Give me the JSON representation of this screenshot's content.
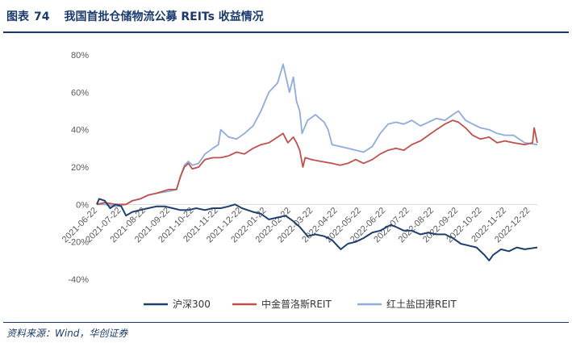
{
  "figure": {
    "label": "图表",
    "number": "74",
    "title": "我国首批仓储物流公募 REITs 收益情况",
    "source": "资料来源：Wind，华创证券"
  },
  "chart_data": {
    "type": "line",
    "yticks": [
      "80%",
      "60%",
      "40%",
      "20%",
      "0%",
      "-20%",
      "-40%"
    ],
    "ylim": [
      -40,
      80
    ],
    "xticks": [
      "2021-06-22",
      "2021-07-22",
      "2021-08-22",
      "2021-09-22",
      "2021-10-22",
      "2021-11-22",
      "2021-12-22",
      "2022-01-22",
      "2022-02-22",
      "2022-03-22",
      "2022-04-22",
      "2022-05-22",
      "2022-06-22",
      "2022-07-22",
      "2022-08-22",
      "2022-09-22",
      "2022-10-22",
      "2022-11-22",
      "2022-12-22"
    ],
    "xrange": [
      "2021-06-21",
      "2022-12-31"
    ],
    "series": [
      {
        "name": "沪深300",
        "color": "#1f3f6e",
        "points": [
          [
            "2021-06-21",
            0
          ],
          [
            "2021-06-24",
            3
          ],
          [
            "2021-07-01",
            2
          ],
          [
            "2021-07-08",
            -2
          ],
          [
            "2021-07-15",
            0
          ],
          [
            "2021-07-22",
            -1
          ],
          [
            "2021-07-28",
            -6
          ],
          [
            "2021-08-05",
            -4
          ],
          [
            "2021-08-15",
            -3
          ],
          [
            "2021-08-25",
            -2
          ],
          [
            "2021-09-05",
            -1
          ],
          [
            "2021-09-15",
            -1
          ],
          [
            "2021-09-25",
            -2
          ],
          [
            "2021-10-05",
            -3
          ],
          [
            "2021-10-15",
            -3
          ],
          [
            "2021-10-25",
            -2
          ],
          [
            "2021-11-05",
            -3
          ],
          [
            "2021-11-15",
            -2
          ],
          [
            "2021-11-25",
            -2
          ],
          [
            "2021-12-05",
            -1
          ],
          [
            "2021-12-13",
            0
          ],
          [
            "2021-12-22",
            -2
          ],
          [
            "2022-01-05",
            -4
          ],
          [
            "2022-01-15",
            -5
          ],
          [
            "2022-01-25",
            -8
          ],
          [
            "2022-02-05",
            -7
          ],
          [
            "2022-02-15",
            -6
          ],
          [
            "2022-02-25",
            -9
          ],
          [
            "2022-03-05",
            -12
          ],
          [
            "2022-03-15",
            -17
          ],
          [
            "2022-03-25",
            -16
          ],
          [
            "2022-04-05",
            -17
          ],
          [
            "2022-04-15",
            -19
          ],
          [
            "2022-04-26",
            -24
          ],
          [
            "2022-05-05",
            -21
          ],
          [
            "2022-05-15",
            -20
          ],
          [
            "2022-05-25",
            -18
          ],
          [
            "2022-06-05",
            -15
          ],
          [
            "2022-06-15",
            -14
          ],
          [
            "2022-06-28",
            -11
          ],
          [
            "2022-07-05",
            -12
          ],
          [
            "2022-07-15",
            -14
          ],
          [
            "2022-07-25",
            -14
          ],
          [
            "2022-08-05",
            -16
          ],
          [
            "2022-08-15",
            -15
          ],
          [
            "2022-08-25",
            -16
          ],
          [
            "2022-09-05",
            -16
          ],
          [
            "2022-09-15",
            -18
          ],
          [
            "2022-09-25",
            -21
          ],
          [
            "2022-10-05",
            -22
          ],
          [
            "2022-10-15",
            -23
          ],
          [
            "2022-10-25",
            -27
          ],
          [
            "2022-10-31",
            -30
          ],
          [
            "2022-11-05",
            -27
          ],
          [
            "2022-11-15",
            -24
          ],
          [
            "2022-11-25",
            -25
          ],
          [
            "2022-12-05",
            -23
          ],
          [
            "2022-12-15",
            -24
          ],
          [
            "2022-12-31",
            -23
          ]
        ]
      },
      {
        "name": "中金普洛斯REIT",
        "color": "#c0504d",
        "points": [
          [
            "2021-06-21",
            0
          ],
          [
            "2021-07-01",
            1
          ],
          [
            "2021-07-15",
            0
          ],
          [
            "2021-07-28",
            0
          ],
          [
            "2021-08-05",
            2
          ],
          [
            "2021-08-15",
            3
          ],
          [
            "2021-08-25",
            5
          ],
          [
            "2021-09-05",
            6
          ],
          [
            "2021-09-20",
            8
          ],
          [
            "2021-09-30",
            8
          ],
          [
            "2021-10-05",
            15
          ],
          [
            "2021-10-10",
            20
          ],
          [
            "2021-10-15",
            22
          ],
          [
            "2021-10-20",
            19
          ],
          [
            "2021-10-28",
            20
          ],
          [
            "2021-11-05",
            24
          ],
          [
            "2021-11-15",
            25
          ],
          [
            "2021-11-25",
            25
          ],
          [
            "2021-12-05",
            26
          ],
          [
            "2021-12-15",
            28
          ],
          [
            "2021-12-25",
            27
          ],
          [
            "2022-01-05",
            30
          ],
          [
            "2022-01-15",
            32
          ],
          [
            "2022-01-25",
            33
          ],
          [
            "2022-02-05",
            36
          ],
          [
            "2022-02-12",
            38
          ],
          [
            "2022-02-18",
            33
          ],
          [
            "2022-02-25",
            36
          ],
          [
            "2022-03-01",
            33
          ],
          [
            "2022-03-05",
            29
          ],
          [
            "2022-03-09",
            20
          ],
          [
            "2022-03-12",
            25
          ],
          [
            "2022-03-20",
            24
          ],
          [
            "2022-04-01",
            23
          ],
          [
            "2022-04-15",
            22
          ],
          [
            "2022-04-25",
            21
          ],
          [
            "2022-05-05",
            22
          ],
          [
            "2022-05-15",
            24
          ],
          [
            "2022-05-25",
            22
          ],
          [
            "2022-06-05",
            24
          ],
          [
            "2022-06-15",
            27
          ],
          [
            "2022-06-25",
            29
          ],
          [
            "2022-07-05",
            30
          ],
          [
            "2022-07-15",
            29
          ],
          [
            "2022-07-25",
            32
          ],
          [
            "2022-08-05",
            34
          ],
          [
            "2022-08-15",
            37
          ],
          [
            "2022-08-25",
            40
          ],
          [
            "2022-09-05",
            43
          ],
          [
            "2022-09-15",
            45
          ],
          [
            "2022-09-22",
            44
          ],
          [
            "2022-10-01",
            41
          ],
          [
            "2022-10-10",
            37
          ],
          [
            "2022-10-20",
            35
          ],
          [
            "2022-10-31",
            36
          ],
          [
            "2022-11-10",
            33
          ],
          [
            "2022-11-20",
            34
          ],
          [
            "2022-12-01",
            33
          ],
          [
            "2022-12-15",
            32
          ],
          [
            "2022-12-25",
            33
          ],
          [
            "2022-12-27",
            41
          ],
          [
            "2022-12-31",
            33
          ]
        ]
      },
      {
        "name": "红土盐田港REIT",
        "color": "#8fabdc",
        "points": [
          [
            "2021-06-21",
            0
          ],
          [
            "2021-07-01",
            0
          ],
          [
            "2021-07-15",
            -1
          ],
          [
            "2021-07-28",
            0
          ],
          [
            "2021-08-05",
            2
          ],
          [
            "2021-08-15",
            3
          ],
          [
            "2021-08-25",
            5
          ],
          [
            "2021-09-05",
            6
          ],
          [
            "2021-09-20",
            7
          ],
          [
            "2021-09-30",
            8
          ],
          [
            "2021-10-05",
            15
          ],
          [
            "2021-10-10",
            21
          ],
          [
            "2021-10-15",
            23
          ],
          [
            "2021-10-20",
            21
          ],
          [
            "2021-10-28",
            22
          ],
          [
            "2021-11-05",
            27
          ],
          [
            "2021-11-15",
            30
          ],
          [
            "2021-11-22",
            32
          ],
          [
            "2021-11-25",
            40
          ],
          [
            "2021-12-05",
            36
          ],
          [
            "2021-12-15",
            35
          ],
          [
            "2021-12-25",
            38
          ],
          [
            "2022-01-05",
            42
          ],
          [
            "2022-01-15",
            50
          ],
          [
            "2022-01-20",
            55
          ],
          [
            "2022-01-25",
            60
          ],
          [
            "2022-02-05",
            65
          ],
          [
            "2022-02-12",
            75
          ],
          [
            "2022-02-20",
            60
          ],
          [
            "2022-02-25",
            68
          ],
          [
            "2022-03-01",
            55
          ],
          [
            "2022-03-05",
            50
          ],
          [
            "2022-03-08",
            38
          ],
          [
            "2022-03-15",
            45
          ],
          [
            "2022-03-25",
            48
          ],
          [
            "2022-04-05",
            44
          ],
          [
            "2022-04-10",
            40
          ],
          [
            "2022-04-15",
            32
          ],
          [
            "2022-04-25",
            31
          ],
          [
            "2022-05-05",
            30
          ],
          [
            "2022-05-15",
            29
          ],
          [
            "2022-05-25",
            28
          ],
          [
            "2022-06-05",
            31
          ],
          [
            "2022-06-15",
            38
          ],
          [
            "2022-06-25",
            43
          ],
          [
            "2022-07-05",
            44
          ],
          [
            "2022-07-15",
            43
          ],
          [
            "2022-07-25",
            45
          ],
          [
            "2022-08-05",
            42
          ],
          [
            "2022-08-15",
            44
          ],
          [
            "2022-08-25",
            46
          ],
          [
            "2022-09-05",
            45
          ],
          [
            "2022-09-15",
            48
          ],
          [
            "2022-09-22",
            50
          ],
          [
            "2022-10-01",
            45
          ],
          [
            "2022-10-10",
            43
          ],
          [
            "2022-10-20",
            41
          ],
          [
            "2022-10-31",
            40
          ],
          [
            "2022-11-10",
            38
          ],
          [
            "2022-11-20",
            37
          ],
          [
            "2022-12-01",
            37
          ],
          [
            "2022-12-15",
            33
          ],
          [
            "2022-12-31",
            32
          ]
        ]
      }
    ],
    "grid": false,
    "legend_position": "bottom"
  }
}
